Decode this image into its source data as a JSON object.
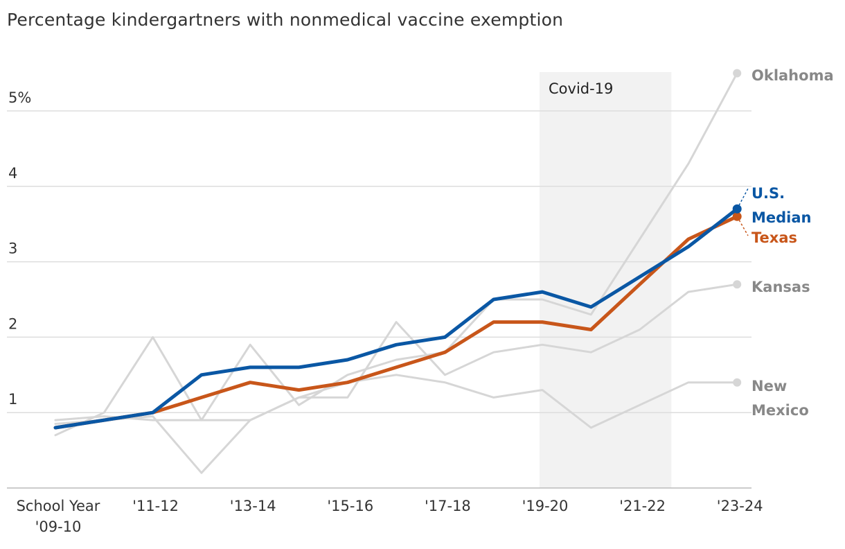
{
  "chart_data": {
    "type": "line",
    "title": "Percentage kindergartners with nonmedical vaccine exemption",
    "y_unit_suffix": "%",
    "ylim": [
      0,
      5.5
    ],
    "yticks": [
      {
        "value": 1,
        "label": "1"
      },
      {
        "value": 2,
        "label": "2"
      },
      {
        "value": 3,
        "label": "3"
      },
      {
        "value": 4,
        "label": "4"
      },
      {
        "value": 5,
        "label": "5%"
      }
    ],
    "x": [
      "2009-10",
      "2010-11",
      "2011-12",
      "2012-13",
      "2013-14",
      "2014-15",
      "2015-16",
      "2016-17",
      "2017-18",
      "2018-19",
      "2019-20",
      "2020-21",
      "2021-22",
      "2022-23",
      "2023-24"
    ],
    "xticks": [
      {
        "index": 0,
        "lines": [
          "School Year",
          "'09-10"
        ]
      },
      {
        "index": 2,
        "lines": [
          "'11-12"
        ]
      },
      {
        "index": 4,
        "lines": [
          "'13-14"
        ]
      },
      {
        "index": 6,
        "lines": [
          "'15-16"
        ]
      },
      {
        "index": 8,
        "lines": [
          "'17-18"
        ]
      },
      {
        "index": 10,
        "lines": [
          "'19-20"
        ]
      },
      {
        "index": 12,
        "lines": [
          "'21-22"
        ]
      },
      {
        "index": 14,
        "lines": [
          "'23-24"
        ]
      }
    ],
    "shaded_region": {
      "label": "Covid-19",
      "from_index": 10,
      "to_index": 12.65,
      "color": "#f2f2f2"
    },
    "series": [
      {
        "name": "Oklahoma",
        "label_lines": [
          "Oklahoma"
        ],
        "color": "#d6d6d6",
        "label_color": "#888888",
        "emphasis": false,
        "values": [
          0.9,
          0.95,
          0.9,
          0.9,
          1.9,
          1.1,
          1.5,
          1.7,
          1.8,
          2.5,
          2.5,
          2.3,
          3.3,
          4.3,
          5.5
        ]
      },
      {
        "name": "Kansas",
        "label_lines": [
          "Kansas"
        ],
        "color": "#d6d6d6",
        "label_color": "#888888",
        "emphasis": false,
        "values": [
          0.7,
          1.0,
          2.0,
          0.9,
          0.9,
          1.2,
          1.2,
          2.2,
          1.5,
          1.8,
          1.9,
          1.8,
          2.1,
          2.6,
          2.7
        ]
      },
      {
        "name": "New Mexico",
        "label_lines": [
          "New",
          "Mexico"
        ],
        "color": "#d6d6d6",
        "label_color": "#888888",
        "emphasis": false,
        "values": [
          0.85,
          0.9,
          0.95,
          0.2,
          0.9,
          1.2,
          1.4,
          1.5,
          1.4,
          1.2,
          1.3,
          0.8,
          1.1,
          1.4,
          1.4
        ]
      },
      {
        "name": "Texas",
        "label_lines": [
          "Texas"
        ],
        "color": "#c8561a",
        "label_color": "#c8561a",
        "emphasis": true,
        "values": [
          0.8,
          0.9,
          1.0,
          1.2,
          1.4,
          1.3,
          1.4,
          1.6,
          1.8,
          2.2,
          2.2,
          2.1,
          2.7,
          3.3,
          3.6
        ]
      },
      {
        "name": "U.S. Median",
        "label_lines": [
          "U.S.",
          "Median"
        ],
        "color": "#0a57a4",
        "label_color": "#0a57a4",
        "emphasis": true,
        "values": [
          0.8,
          0.9,
          1.0,
          1.5,
          1.6,
          1.6,
          1.7,
          1.9,
          2.0,
          2.5,
          2.6,
          2.4,
          2.8,
          3.2,
          3.7
        ]
      }
    ]
  }
}
